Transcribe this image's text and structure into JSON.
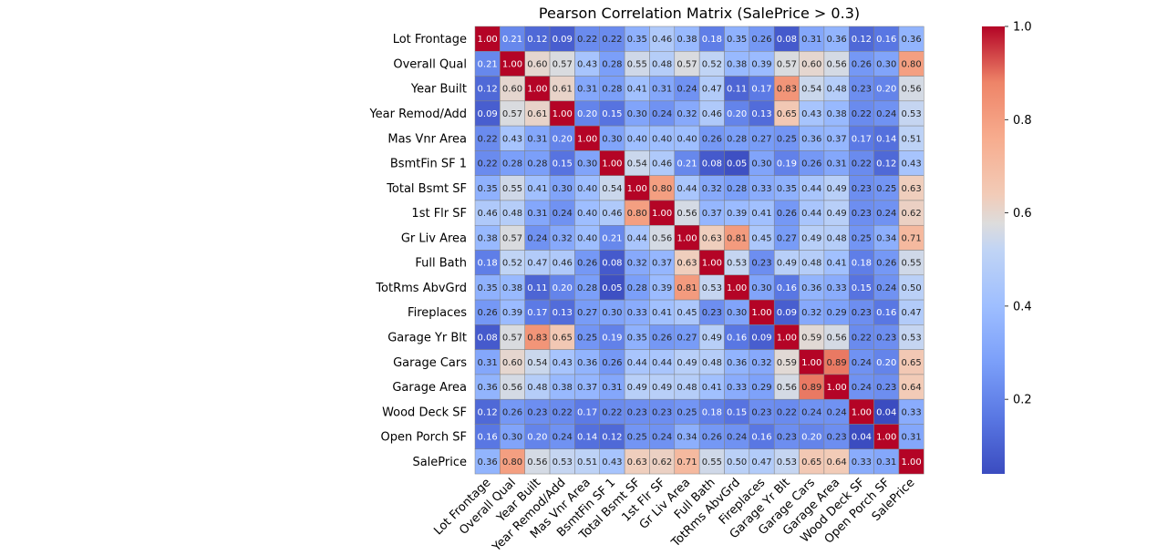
{
  "chart_data": {
    "type": "heatmap",
    "title": "Pearson Correlation Matrix (SalePrice > 0.3)",
    "labels": [
      "Lot Frontage",
      "Overall Qual",
      "Year Built",
      "Year Remod/Add",
      "Mas Vnr Area",
      "BsmtFin SF 1",
      "Total Bsmt SF",
      "1st Flr SF",
      "Gr Liv Area",
      "Full Bath",
      "TotRms AbvGrd",
      "Fireplaces",
      "Garage Yr Blt",
      "Garage Cars",
      "Garage Area",
      "Wood Deck SF",
      "Open Porch SF",
      "SalePrice"
    ],
    "values": [
      [
        1.0,
        0.21,
        0.12,
        0.09,
        0.22,
        0.22,
        0.35,
        0.46,
        0.38,
        0.18,
        0.35,
        0.26,
        0.08,
        0.31,
        0.36,
        0.12,
        0.16,
        0.36
      ],
      [
        0.21,
        1.0,
        0.6,
        0.57,
        0.43,
        0.28,
        0.55,
        0.48,
        0.57,
        0.52,
        0.38,
        0.39,
        0.57,
        0.6,
        0.56,
        0.26,
        0.3,
        0.8
      ],
      [
        0.12,
        0.6,
        1.0,
        0.61,
        0.31,
        0.28,
        0.41,
        0.31,
        0.24,
        0.47,
        0.11,
        0.17,
        0.83,
        0.54,
        0.48,
        0.23,
        0.2,
        0.56
      ],
      [
        0.09,
        0.57,
        0.61,
        1.0,
        0.2,
        0.15,
        0.3,
        0.24,
        0.32,
        0.46,
        0.2,
        0.13,
        0.65,
        0.43,
        0.38,
        0.22,
        0.24,
        0.53
      ],
      [
        0.22,
        0.43,
        0.31,
        0.2,
        1.0,
        0.3,
        0.4,
        0.4,
        0.4,
        0.26,
        0.28,
        0.27,
        0.25,
        0.36,
        0.37,
        0.17,
        0.14,
        0.51
      ],
      [
        0.22,
        0.28,
        0.28,
        0.15,
        0.3,
        1.0,
        0.54,
        0.46,
        0.21,
        0.08,
        0.05,
        0.3,
        0.19,
        0.26,
        0.31,
        0.22,
        0.12,
        0.43
      ],
      [
        0.35,
        0.55,
        0.41,
        0.3,
        0.4,
        0.54,
        1.0,
        0.8,
        0.44,
        0.32,
        0.28,
        0.33,
        0.35,
        0.44,
        0.49,
        0.23,
        0.25,
        0.63
      ],
      [
        0.46,
        0.48,
        0.31,
        0.24,
        0.4,
        0.46,
        0.8,
        1.0,
        0.56,
        0.37,
        0.39,
        0.41,
        0.26,
        0.44,
        0.49,
        0.23,
        0.24,
        0.62
      ],
      [
        0.38,
        0.57,
        0.24,
        0.32,
        0.4,
        0.21,
        0.44,
        0.56,
        1.0,
        0.63,
        0.81,
        0.45,
        0.27,
        0.49,
        0.48,
        0.25,
        0.34,
        0.71
      ],
      [
        0.18,
        0.52,
        0.47,
        0.46,
        0.26,
        0.08,
        0.32,
        0.37,
        0.63,
        1.0,
        0.53,
        0.23,
        0.49,
        0.48,
        0.41,
        0.18,
        0.26,
        0.55
      ],
      [
        0.35,
        0.38,
        0.11,
        0.2,
        0.28,
        0.05,
        0.28,
        0.39,
        0.81,
        0.53,
        1.0,
        0.3,
        0.16,
        0.36,
        0.33,
        0.15,
        0.24,
        0.5
      ],
      [
        0.26,
        0.39,
        0.17,
        0.13,
        0.27,
        0.3,
        0.33,
        0.41,
        0.45,
        0.23,
        0.3,
        1.0,
        0.09,
        0.32,
        0.29,
        0.23,
        0.16,
        0.47
      ],
      [
        0.08,
        0.57,
        0.83,
        0.65,
        0.25,
        0.19,
        0.35,
        0.26,
        0.27,
        0.49,
        0.16,
        0.09,
        1.0,
        0.59,
        0.56,
        0.22,
        0.23,
        0.53
      ],
      [
        0.31,
        0.6,
        0.54,
        0.43,
        0.36,
        0.26,
        0.44,
        0.44,
        0.49,
        0.48,
        0.36,
        0.32,
        0.59,
        1.0,
        0.89,
        0.24,
        0.2,
        0.65
      ],
      [
        0.36,
        0.56,
        0.48,
        0.38,
        0.37,
        0.31,
        0.49,
        0.49,
        0.48,
        0.41,
        0.33,
        0.29,
        0.56,
        0.89,
        1.0,
        0.24,
        0.23,
        0.64
      ],
      [
        0.12,
        0.26,
        0.23,
        0.22,
        0.17,
        0.22,
        0.23,
        0.23,
        0.25,
        0.18,
        0.15,
        0.23,
        0.22,
        0.24,
        0.24,
        1.0,
        0.04,
        0.33
      ],
      [
        0.16,
        0.3,
        0.2,
        0.24,
        0.14,
        0.12,
        0.25,
        0.24,
        0.34,
        0.26,
        0.24,
        0.16,
        0.23,
        0.2,
        0.23,
        0.04,
        1.0,
        0.31
      ],
      [
        0.36,
        0.8,
        0.56,
        0.53,
        0.51,
        0.43,
        0.63,
        0.62,
        0.71,
        0.55,
        0.5,
        0.47,
        0.53,
        0.65,
        0.64,
        0.33,
        0.31,
        1.0
      ]
    ],
    "colormap": "coolwarm",
    "value_range": [
      0.04,
      1.0
    ],
    "colorbar_ticks": [
      "0.2",
      "0.4",
      "0.6",
      "0.8",
      "1.0"
    ],
    "colorbar_tick_values": [
      0.2,
      0.4,
      0.6,
      0.8,
      1.0
    ],
    "cell_border_color": "#808080"
  }
}
